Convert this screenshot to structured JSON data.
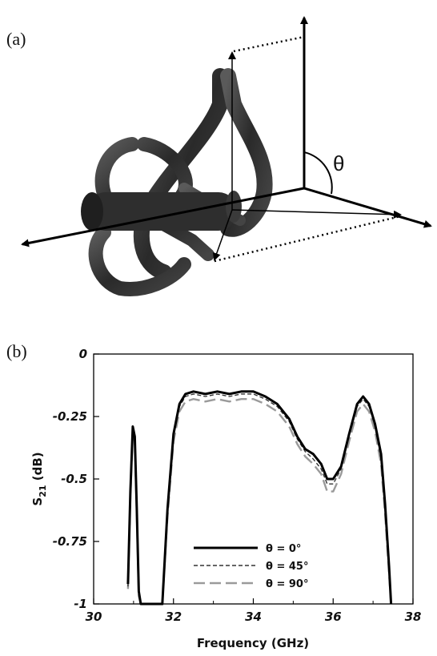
{
  "panels": {
    "a": {
      "label": "(a)",
      "angle_symbol": "θ"
    },
    "b": {
      "label": "(b)"
    }
  },
  "chart_data": {
    "type": "line",
    "title": "",
    "xlabel": "Frequency (GHz)",
    "ylabel_main": "S",
    "ylabel_sub": "21",
    "ylabel_unit": " (dB)",
    "xlim": [
      30,
      38
    ],
    "ylim": [
      -1,
      0
    ],
    "x_ticks": [
      30,
      32,
      34,
      36,
      38
    ],
    "x_tick_labels": [
      "30",
      "32",
      "34",
      "36",
      "38"
    ],
    "y_ticks": [
      0,
      -0.25,
      -0.5,
      -0.75,
      -1
    ],
    "y_tick_labels": [
      "0",
      "-0.25",
      "-0.5",
      "-0.75",
      "-1"
    ],
    "grid": false,
    "legend_position": "bottom-center",
    "series": [
      {
        "name": "θ = 0°",
        "style": "solid",
        "color": "#000000",
        "x": [
          30.86,
          30.92,
          30.98,
          31.03,
          31.08,
          31.13,
          31.18,
          31.5,
          31.72,
          31.85,
          32.0,
          32.15,
          32.3,
          32.5,
          32.8,
          33.1,
          33.4,
          33.7,
          34.0,
          34.3,
          34.6,
          34.9,
          35.1,
          35.3,
          35.5,
          35.7,
          35.85,
          36.0,
          36.2,
          36.4,
          36.6,
          36.75,
          36.9,
          37.05,
          37.2,
          37.3,
          37.4,
          37.45
        ],
        "y": [
          -0.92,
          -0.55,
          -0.29,
          -0.33,
          -0.62,
          -0.95,
          -1.0,
          -1.0,
          -1.0,
          -0.62,
          -0.32,
          -0.2,
          -0.16,
          -0.15,
          -0.16,
          -0.15,
          -0.16,
          -0.15,
          -0.15,
          -0.17,
          -0.2,
          -0.26,
          -0.33,
          -0.38,
          -0.4,
          -0.44,
          -0.5,
          -0.5,
          -0.45,
          -0.32,
          -0.2,
          -0.17,
          -0.2,
          -0.28,
          -0.4,
          -0.6,
          -0.85,
          -1.0
        ]
      },
      {
        "name": "θ = 45°",
        "style": "dashed",
        "color": "#333333",
        "x": [
          30.86,
          30.92,
          30.98,
          31.03,
          31.08,
          31.13,
          31.18,
          31.5,
          31.72,
          31.85,
          32.0,
          32.15,
          32.3,
          32.5,
          32.8,
          33.1,
          33.4,
          33.7,
          34.0,
          34.3,
          34.6,
          34.9,
          35.1,
          35.3,
          35.5,
          35.7,
          35.85,
          36.0,
          36.2,
          36.4,
          36.6,
          36.75,
          36.9,
          37.05,
          37.2,
          37.3,
          37.4,
          37.45
        ],
        "y": [
          -0.93,
          -0.56,
          -0.3,
          -0.34,
          -0.63,
          -0.96,
          -1.0,
          -1.0,
          -1.0,
          -0.63,
          -0.33,
          -0.21,
          -0.17,
          -0.16,
          -0.17,
          -0.16,
          -0.17,
          -0.16,
          -0.16,
          -0.18,
          -0.21,
          -0.27,
          -0.34,
          -0.39,
          -0.42,
          -0.46,
          -0.52,
          -0.52,
          -0.46,
          -0.33,
          -0.21,
          -0.18,
          -0.21,
          -0.29,
          -0.42,
          -0.62,
          -0.86,
          -1.0
        ]
      },
      {
        "name": "θ = 90°",
        "style": "long-dash",
        "color": "#9a9a9a",
        "x": [
          30.86,
          30.92,
          30.98,
          31.03,
          31.08,
          31.13,
          31.18,
          31.5,
          31.72,
          31.85,
          32.0,
          32.15,
          32.3,
          32.5,
          32.8,
          33.1,
          33.4,
          33.7,
          34.0,
          34.3,
          34.6,
          34.9,
          35.1,
          35.3,
          35.5,
          35.7,
          35.85,
          36.0,
          36.2,
          36.4,
          36.6,
          36.75,
          36.9,
          37.05,
          37.2,
          37.3,
          37.4,
          37.45
        ],
        "y": [
          -0.94,
          -0.57,
          -0.31,
          -0.35,
          -0.64,
          -0.97,
          -1.0,
          -1.0,
          -1.0,
          -0.65,
          -0.35,
          -0.23,
          -0.19,
          -0.18,
          -0.19,
          -0.18,
          -0.19,
          -0.18,
          -0.18,
          -0.2,
          -0.23,
          -0.29,
          -0.36,
          -0.41,
          -0.44,
          -0.48,
          -0.55,
          -0.55,
          -0.48,
          -0.35,
          -0.23,
          -0.2,
          -0.23,
          -0.31,
          -0.44,
          -0.64,
          -0.88,
          -1.0
        ]
      }
    ]
  }
}
